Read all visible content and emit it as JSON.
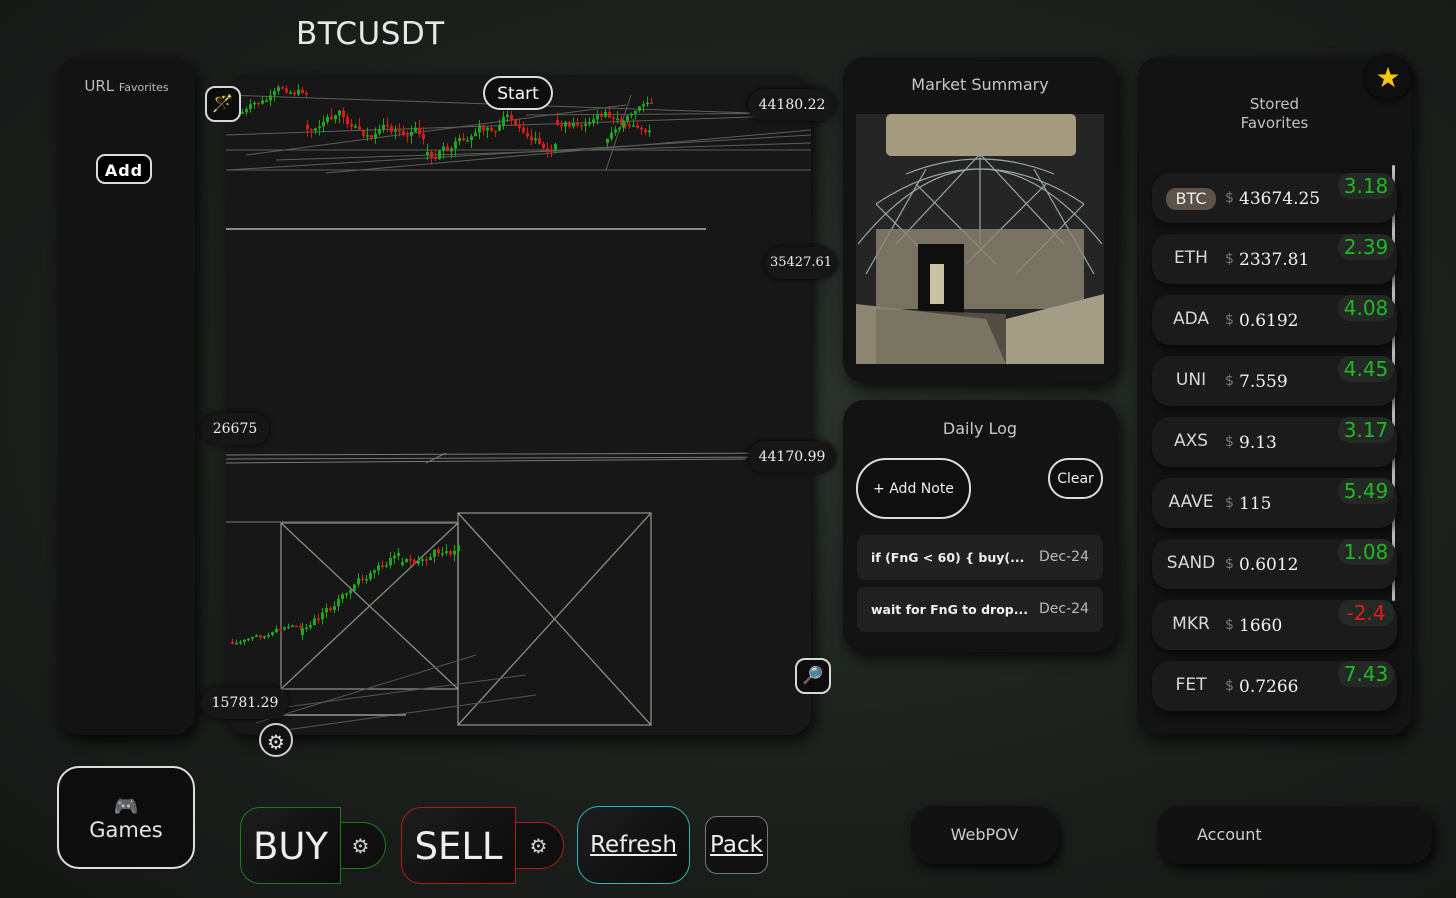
{
  "pair": "BTCUSDT",
  "url_favorites": {
    "title": "URL",
    "subtitle": "Favorites",
    "add_label": "Add"
  },
  "chart": {
    "start_label": "Start",
    "price_labels": {
      "top_right": "44180.22",
      "upper_mid_right": "35427.61",
      "mid_left": "26675",
      "mid_right": "44170.99",
      "bottom_left": "15781.29"
    }
  },
  "market_summary": {
    "title": "Market Summary"
  },
  "daily_log": {
    "title": "Daily Log",
    "add_note_label": "+ Add Note",
    "clear_label": "Clear",
    "notes": [
      {
        "text": "if (FnG < 60) { buy(...",
        "date": "Dec-24"
      },
      {
        "text": "wait for FnG to drop...",
        "date": "Dec-24"
      }
    ]
  },
  "stored_favorites": {
    "title_line1": "Stored",
    "title_line2": "Favorites",
    "currency_symbol": "$",
    "items": [
      {
        "symbol": "BTC",
        "price": "43674.25",
        "change": "3.18",
        "direction": "up",
        "active": true
      },
      {
        "symbol": "ETH",
        "price": "2337.81",
        "change": "2.39",
        "direction": "up"
      },
      {
        "symbol": "ADA",
        "price": "0.6192",
        "change": "4.08",
        "direction": "up"
      },
      {
        "symbol": "UNI",
        "price": "7.559",
        "change": "4.45",
        "direction": "up"
      },
      {
        "symbol": "AXS",
        "price": "9.13",
        "change": "3.17",
        "direction": "up"
      },
      {
        "symbol": "AAVE",
        "price": "115",
        "change": "5.49",
        "direction": "up"
      },
      {
        "symbol": "SAND",
        "price": "0.6012",
        "change": "1.08",
        "direction": "up"
      },
      {
        "symbol": "MKR",
        "price": "1660",
        "change": "-2.4",
        "direction": "down"
      },
      {
        "symbol": "FET",
        "price": "0.7266",
        "change": "7.43",
        "direction": "up"
      }
    ]
  },
  "bottom": {
    "games_label": "Games",
    "buy_label": "BUY",
    "sell_label": "SELL",
    "refresh_label": "Refresh",
    "pack_label": "Pack",
    "webpov_label": "WebPOV",
    "account_label": "Account"
  },
  "icons": {
    "wand": "magic-wand-icon",
    "search": "magnifier-icon",
    "gear": "gear-icon",
    "star": "star-icon",
    "games": "gamepad-icon"
  },
  "colors": {
    "up": "#22b722",
    "down": "#e51b1b",
    "buy_border": "#1f7a1f",
    "sell_border": "#b01a1a",
    "refresh_border": "#2fb8b8",
    "star": "#f5c518"
  }
}
